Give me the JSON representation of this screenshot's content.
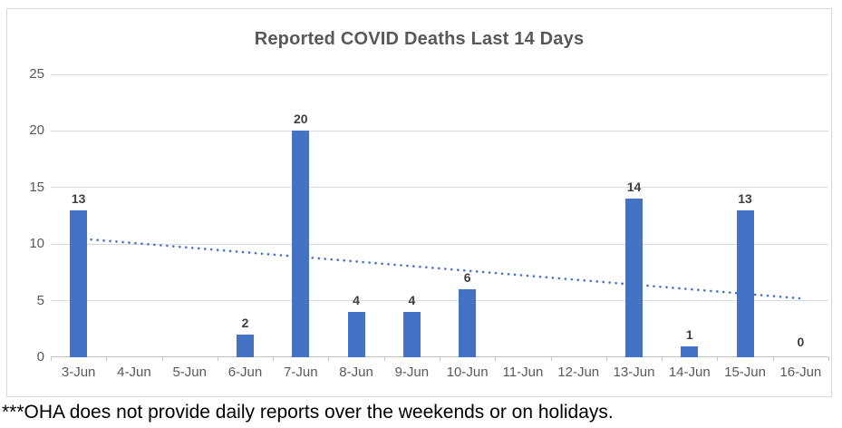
{
  "chart_data": {
    "type": "bar",
    "title": "Reported COVID Deaths Last 14 Days",
    "categories": [
      "3-Jun",
      "4-Jun",
      "5-Jun",
      "6-Jun",
      "7-Jun",
      "8-Jun",
      "9-Jun",
      "10-Jun",
      "11-Jun",
      "12-Jun",
      "13-Jun",
      "14-Jun",
      "15-Jun",
      "16-Jun"
    ],
    "values": [
      13,
      null,
      null,
      2,
      20,
      4,
      4,
      6,
      null,
      null,
      14,
      1,
      13,
      0
    ],
    "data_labels": [
      "13",
      "",
      "",
      "2",
      "20",
      "4",
      "4",
      "6",
      "",
      "",
      "14",
      "1",
      "13",
      "0"
    ],
    "xlabel": "",
    "ylabel": "",
    "ylim": [
      0,
      25
    ],
    "yticks": [
      0,
      5,
      10,
      15,
      20,
      25
    ],
    "grid": true,
    "legend": "none",
    "trendline": {
      "type": "linear",
      "style": "dotted",
      "start_value": 10.5,
      "end_value": 5.2
    },
    "colors": {
      "bar": "#4472C4",
      "trend": "#4472C4",
      "grid": "#D9D9D9",
      "axis": "#C6C6C6",
      "title": "#595959",
      "axis_text": "#595959",
      "data_label": "#3F3F3F",
      "frame_border": "#D9D9D9",
      "footnote": "#000000"
    }
  },
  "footnote": "***OHA does not provide daily reports over the weekends or on holidays."
}
